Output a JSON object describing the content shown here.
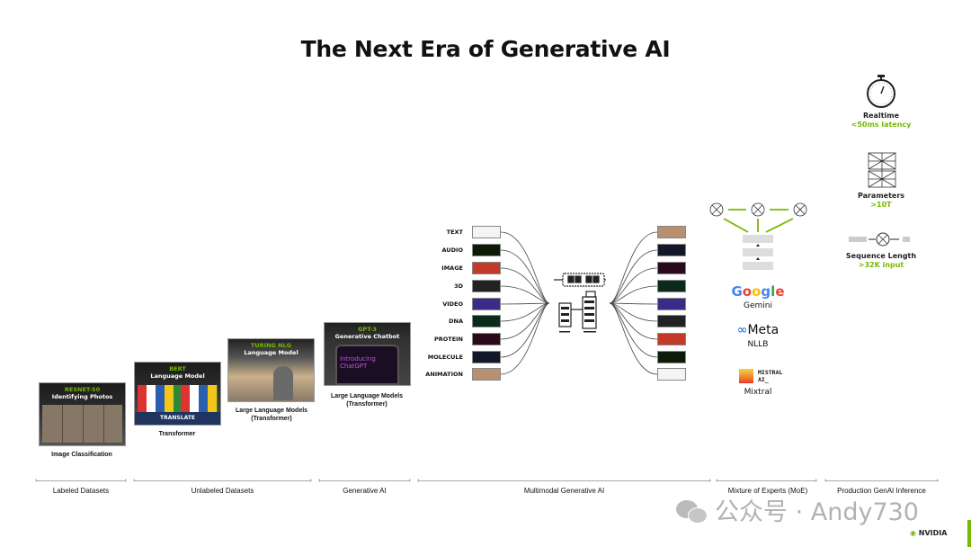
{
  "title": "The Next Era of Generative AI",
  "cards": [
    {
      "model": "RESNET-50",
      "desc": "Identifying Photos",
      "caption": "Image Classification",
      "art": "cat-photos"
    },
    {
      "model": "BERT",
      "desc": "Language Model",
      "caption": "Transformer",
      "art": "flags",
      "banner": "TRANSLATE"
    },
    {
      "model": "TURING NLG",
      "desc": "Language Model",
      "caption": "Large Language Models (Transformer)",
      "art": "woman-with-phone"
    },
    {
      "model": "GPT-3",
      "desc": "Generative Chatbot",
      "caption": "Large Language Models (Transformer)",
      "art": "chatgpt-phone",
      "screen_text": "Introducing ChatGPT"
    }
  ],
  "multimodal": {
    "inputs": [
      "TEXT",
      "AUDIO",
      "IMAGE",
      "3D",
      "VIDEO",
      "DNA",
      "PROTEIN",
      "MOLECULE",
      "ANIMATION"
    ],
    "input_colors": [
      "#f4f4f4",
      "#0c1a08",
      "#c43a2a",
      "#222",
      "#3a2a8a",
      "#0a2a1a",
      "#2a0a1a",
      "#121828",
      "#b89070"
    ],
    "output_colors": [
      "#b89070",
      "#121828",
      "#2a0a1a",
      "#0a2a1a",
      "#3a2a8a",
      "#222",
      "#c43a2a",
      "#0c1a08",
      "#f4f4f4"
    ]
  },
  "moe": {
    "logos": [
      {
        "brand": "Google",
        "model": "Gemini"
      },
      {
        "brand": "Meta",
        "model": "NLLB"
      },
      {
        "brand": "MISTRAL AI_",
        "model": "Mixtral"
      }
    ]
  },
  "inference": [
    {
      "label": "Realtime",
      "value": "<50ms latency",
      "icon": "stopwatch-icon"
    },
    {
      "label": "Parameters",
      "value": ">10T",
      "icon": "neural-network-icon"
    },
    {
      "label": "Sequence Length",
      "value": ">32K input",
      "icon": "sequence-icon"
    }
  ],
  "eras": [
    "Labeled Datasets",
    "Unlabeled Datasets",
    "Generative AI",
    "Multimodal Generative AI",
    "Mixture of Experts (MoE)",
    "Production GenAI Inference"
  ],
  "watermark": "公众号 · Andy730",
  "brand": "NVIDIA",
  "accent": "#76b900"
}
